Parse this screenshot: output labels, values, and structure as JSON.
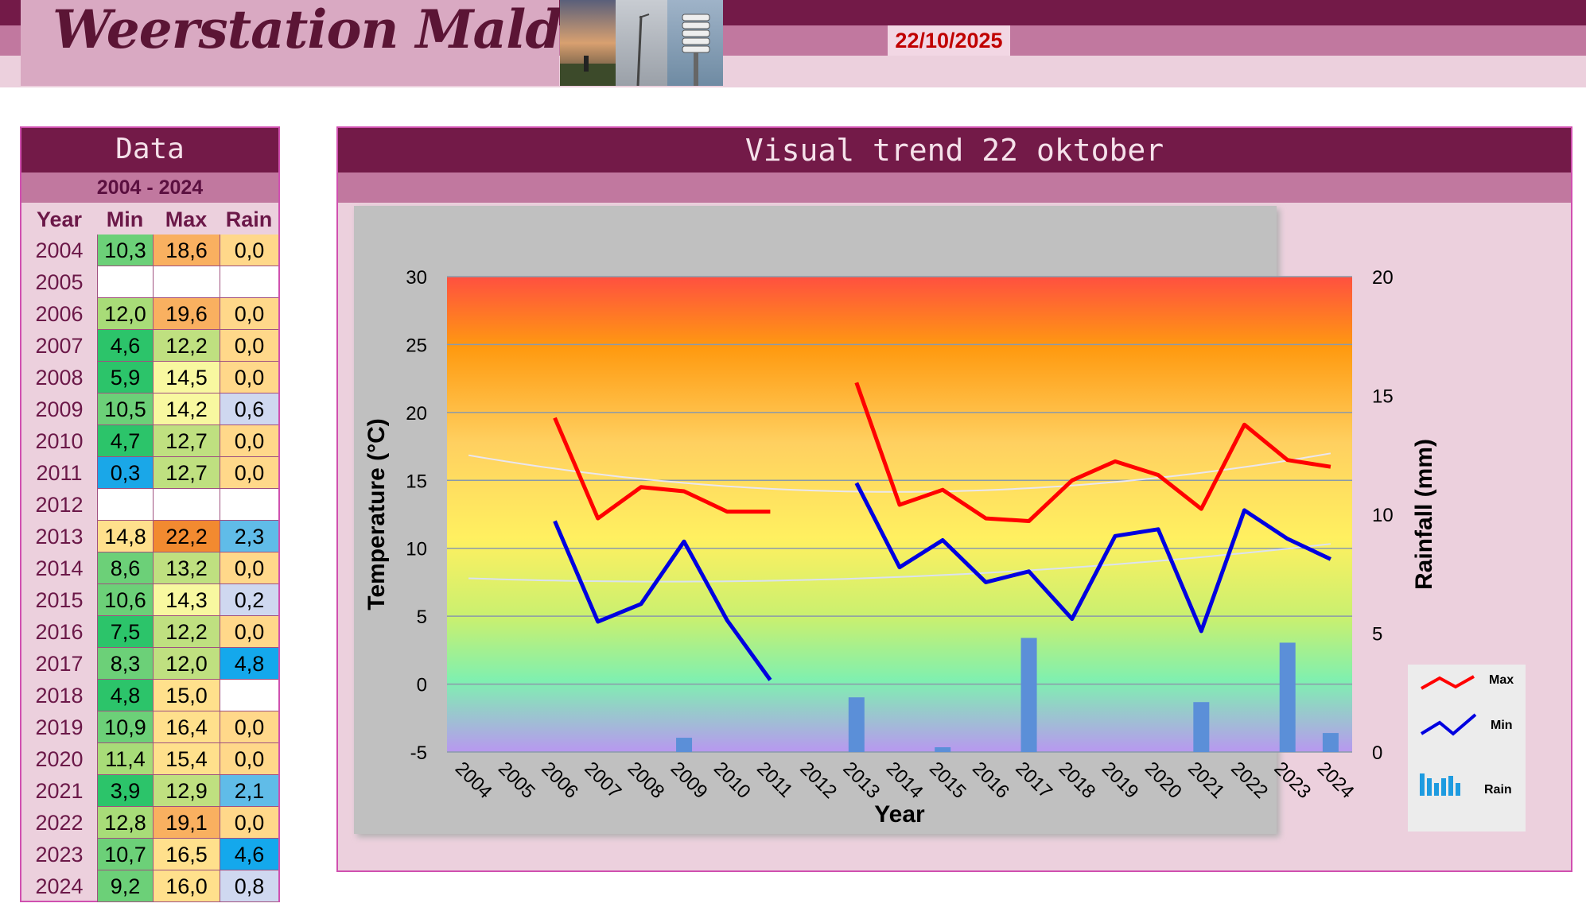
{
  "header": {
    "site_title": "Weerstation Malderen",
    "date": "22/10/2025"
  },
  "data_table": {
    "title": "Data",
    "period": "2004 - 2024",
    "columns": [
      "Year",
      "Min",
      "Max",
      "Rain"
    ],
    "rows": [
      {
        "year": "2004",
        "min": "10,3",
        "max": "18,6",
        "rain": "0,0"
      },
      {
        "year": "2005",
        "min": "",
        "max": "",
        "rain": ""
      },
      {
        "year": "2006",
        "min": "12,0",
        "max": "19,6",
        "rain": "0,0"
      },
      {
        "year": "2007",
        "min": "4,6",
        "max": "12,2",
        "rain": "0,0"
      },
      {
        "year": "2008",
        "min": "5,9",
        "max": "14,5",
        "rain": "0,0"
      },
      {
        "year": "2009",
        "min": "10,5",
        "max": "14,2",
        "rain": "0,6"
      },
      {
        "year": "2010",
        "min": "4,7",
        "max": "12,7",
        "rain": "0,0"
      },
      {
        "year": "2011",
        "min": "0,3",
        "max": "12,7",
        "rain": "0,0"
      },
      {
        "year": "2012",
        "min": "",
        "max": "",
        "rain": ""
      },
      {
        "year": "2013",
        "min": "14,8",
        "max": "22,2",
        "rain": "2,3"
      },
      {
        "year": "2014",
        "min": "8,6",
        "max": "13,2",
        "rain": "0,0"
      },
      {
        "year": "2015",
        "min": "10,6",
        "max": "14,3",
        "rain": "0,2"
      },
      {
        "year": "2016",
        "min": "7,5",
        "max": "12,2",
        "rain": "0,0"
      },
      {
        "year": "2017",
        "min": "8,3",
        "max": "12,0",
        "rain": "4,8"
      },
      {
        "year": "2018",
        "min": "4,8",
        "max": "15,0",
        "rain": ""
      },
      {
        "year": "2019",
        "min": "10,9",
        "max": "16,4",
        "rain": "0,0"
      },
      {
        "year": "2020",
        "min": "11,4",
        "max": "15,4",
        "rain": "0,0"
      },
      {
        "year": "2021",
        "min": "3,9",
        "max": "12,9",
        "rain": "2,1"
      },
      {
        "year": "2022",
        "min": "12,8",
        "max": "19,1",
        "rain": "0,0"
      },
      {
        "year": "2023",
        "min": "10,7",
        "max": "16,5",
        "rain": "4,6"
      },
      {
        "year": "2024",
        "min": "9,2",
        "max": "16,0",
        "rain": "0,8"
      }
    ]
  },
  "chart_panel": {
    "title": "Visual trend 22 oktober"
  },
  "chart_data": {
    "type": "line",
    "x": [
      2004,
      2005,
      2006,
      2007,
      2008,
      2009,
      2010,
      2011,
      2012,
      2013,
      2014,
      2015,
      2016,
      2017,
      2018,
      2019,
      2020,
      2021,
      2022,
      2023,
      2024
    ],
    "xlabel": "Year",
    "ylabel": "Temperature (°C)",
    "y2label": "Rainfall (mm)",
    "ylim": [
      -5,
      30
    ],
    "y2lim": [
      0,
      20
    ],
    "yticks": [
      -5,
      0,
      5,
      10,
      15,
      20,
      25,
      30
    ],
    "y2ticks": [
      0,
      5,
      10,
      15,
      20
    ],
    "grid": true,
    "legend_position": "bottom-right",
    "series": [
      {
        "name": "Max",
        "type": "line",
        "axis": "left",
        "color": "#ff0000",
        "values": [
          null,
          null,
          19.6,
          12.2,
          14.5,
          14.2,
          12.7,
          12.7,
          null,
          22.2,
          13.2,
          14.3,
          12.2,
          12.0,
          15.0,
          16.4,
          15.4,
          12.9,
          19.1,
          16.5,
          16.0
        ]
      },
      {
        "name": "Min",
        "type": "line",
        "axis": "left",
        "color": "#0000e0",
        "values": [
          null,
          null,
          12.0,
          4.6,
          5.9,
          10.5,
          4.7,
          0.3,
          null,
          14.8,
          8.6,
          10.6,
          7.5,
          8.3,
          4.8,
          10.9,
          11.4,
          3.9,
          12.8,
          10.7,
          9.2
        ]
      },
      {
        "name": "Rain",
        "type": "bar",
        "axis": "right",
        "color": "#5b8fd8",
        "values": [
          0.0,
          null,
          0.0,
          0.0,
          0.0,
          0.6,
          0.0,
          0.0,
          null,
          2.3,
          0.0,
          0.2,
          0.0,
          4.8,
          null,
          0.0,
          0.0,
          2.1,
          0.0,
          4.6,
          0.8
        ]
      }
    ],
    "trend_lines": [
      {
        "of": "Max",
        "type": "polynomial",
        "color": "#e8e8ff"
      },
      {
        "of": "Min",
        "type": "polynomial",
        "color": "#d8e0ff"
      }
    ],
    "background": "vertical gradient red-orange-yellow-green-blue-purple"
  },
  "colors": {
    "header_dark": "#731a48",
    "header_mid": "#c1789f",
    "header_light": "#ecd0dd",
    "date_red": "#c00000"
  }
}
